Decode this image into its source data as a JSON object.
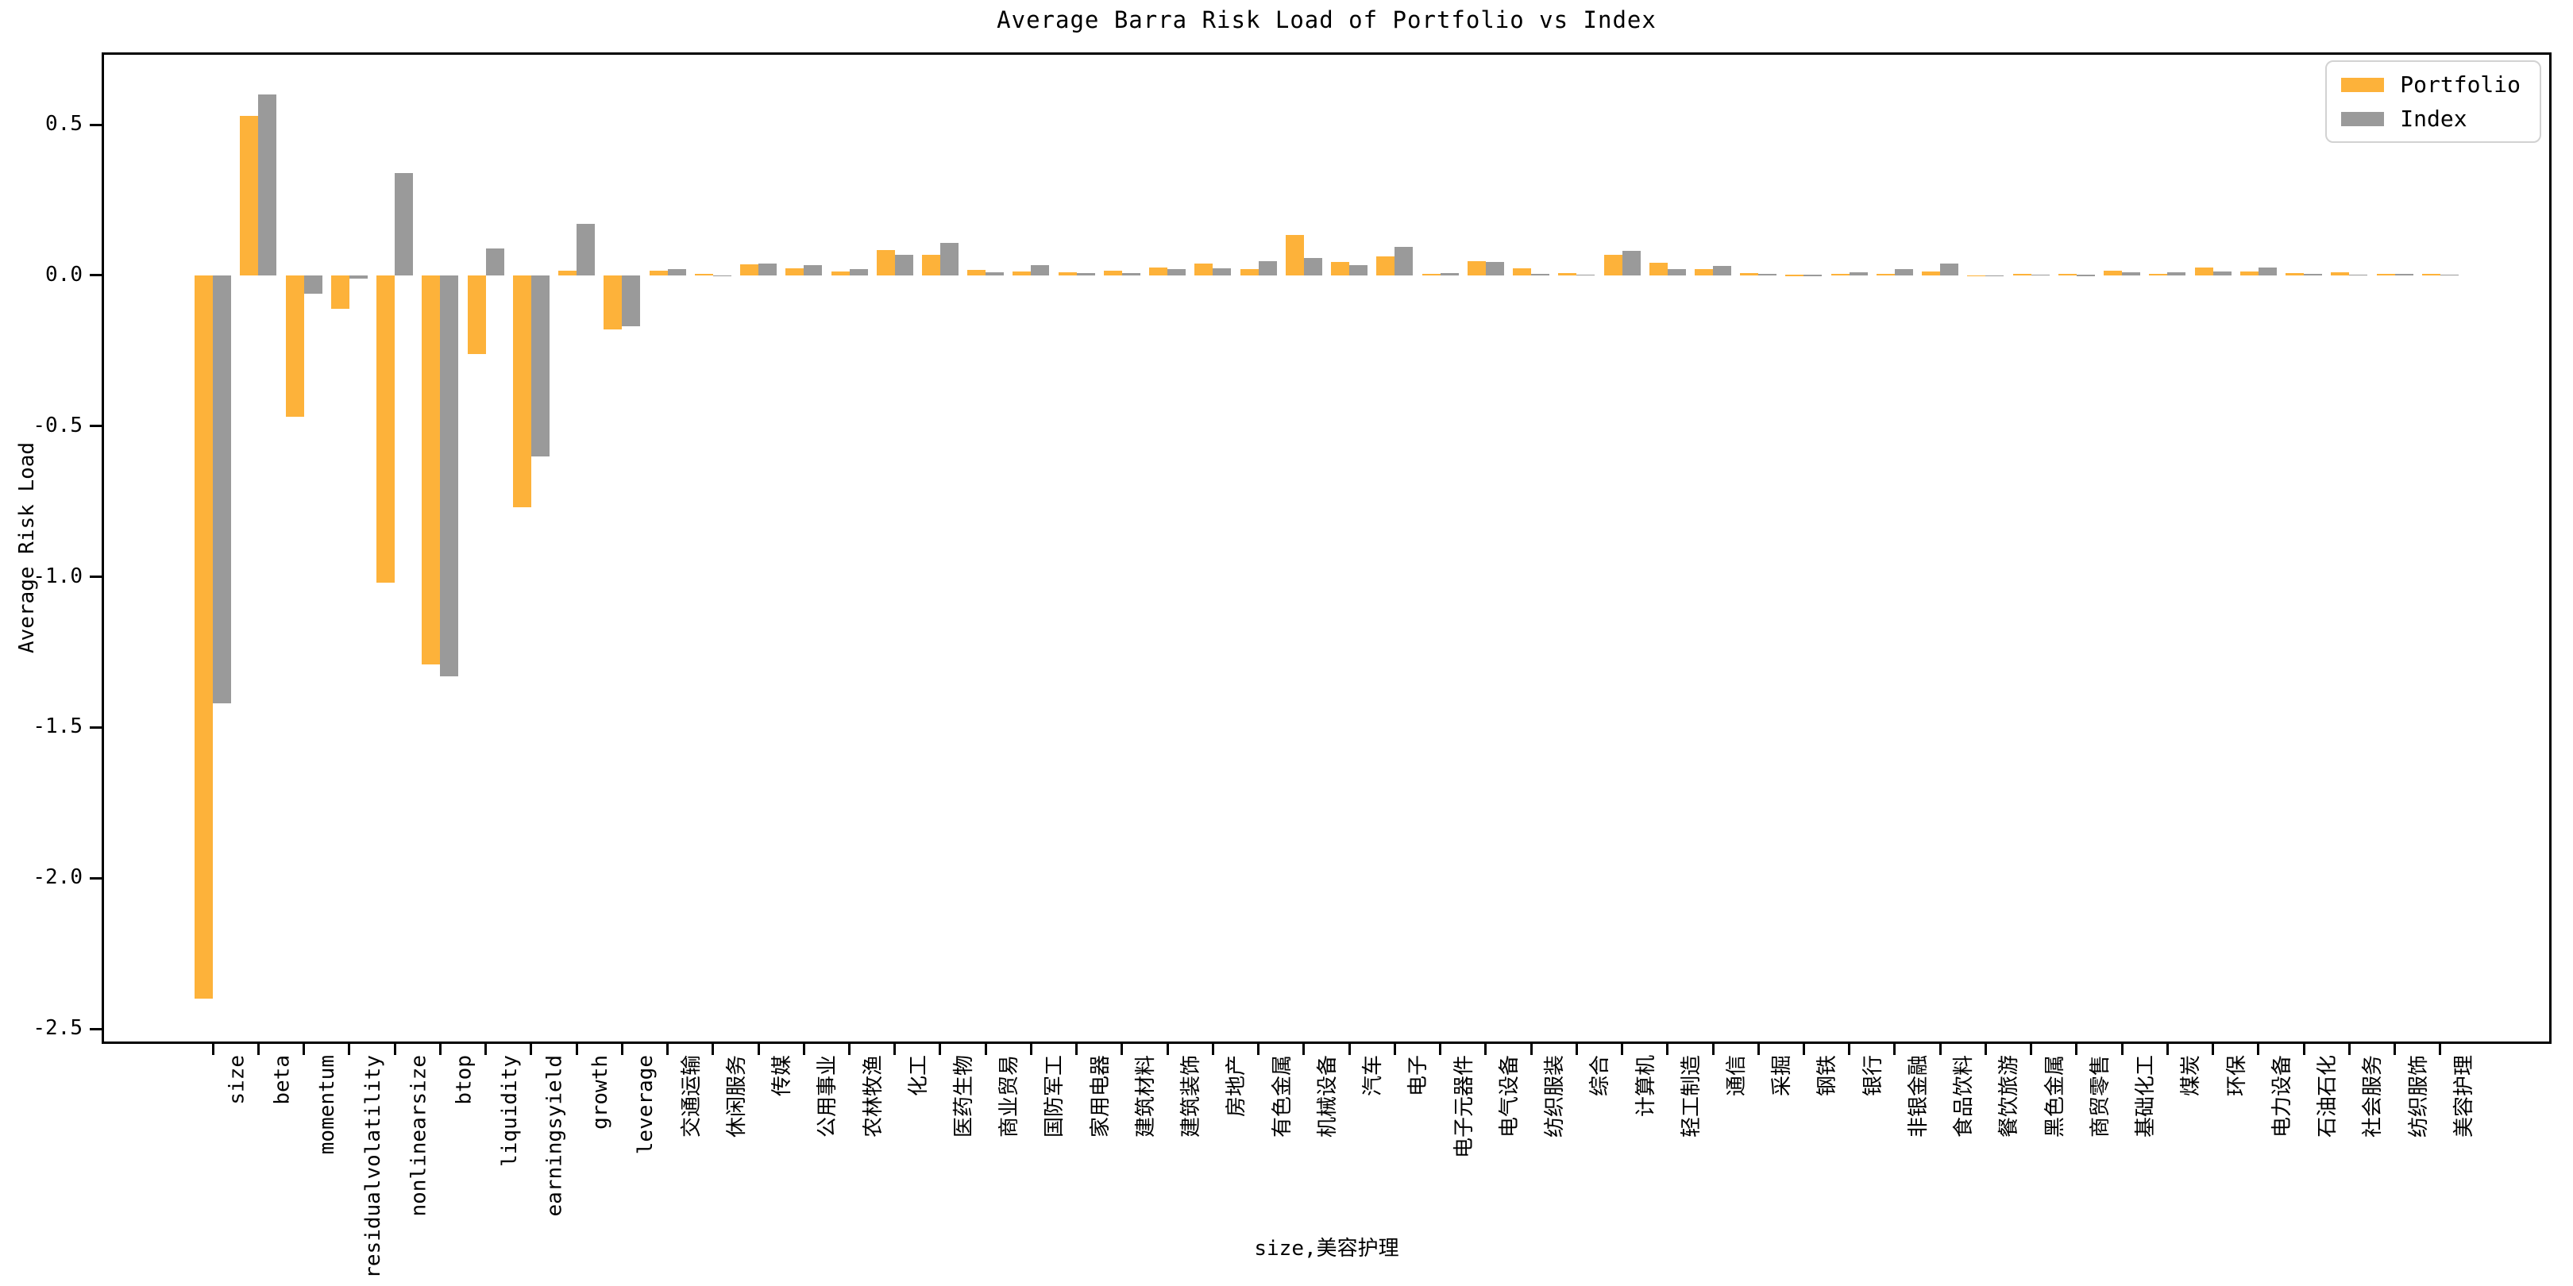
{
  "chart_data": {
    "type": "bar",
    "title": "Average Barra Risk Load of Portfolio vs Index",
    "xlabel": "size,美容护理",
    "ylabel": "Average Risk Load",
    "ylim": [
      -2.55,
      0.74
    ],
    "yticks": [
      0.5,
      0.0,
      -0.5,
      -1.0,
      -1.5,
      -2.0,
      -2.5
    ],
    "grid": false,
    "legend_position": "upper right",
    "background_color": "#FFFFFF",
    "axis_color": "#000000",
    "categories": [
      "size",
      "beta",
      "momentum",
      "residualvolatility",
      "nonlinearsize",
      "btop",
      "liquidity",
      "earningsyield",
      "growth",
      "leverage",
      "交通运输",
      "休闲服务",
      "传媒",
      "公用事业",
      "农林牧渔",
      "化工",
      "医药生物",
      "商业贸易",
      "国防军工",
      "家用电器",
      "建筑材料",
      "建筑装饰",
      "房地产",
      "有色金属",
      "机械设备",
      "汽车",
      "电子",
      "电子元器件",
      "电气设备",
      "纺织服装",
      "综合",
      "计算机",
      "轻工制造",
      "通信",
      "采掘",
      "钢铁",
      "银行",
      "非银金融",
      "食品饮料",
      "餐饮旅游",
      "黑色金属",
      "商贸零售",
      "基础化工",
      "煤炭",
      "环保",
      "电力设备",
      "石油石化",
      "社会服务",
      "纺织服饰",
      "美容护理"
    ],
    "series": [
      {
        "name": "Portfolio",
        "color": "#FDB23A",
        "values": [
          -2.4,
          0.53,
          -0.47,
          -0.11,
          -1.02,
          -1.29,
          -0.26,
          -0.77,
          0.015,
          -0.18,
          0.015,
          0.005,
          0.037,
          0.023,
          0.013,
          0.083,
          0.068,
          0.018,
          0.014,
          0.011,
          0.015,
          0.027,
          0.04,
          0.02,
          0.133,
          0.044,
          0.063,
          0.004,
          0.048,
          0.024,
          0.007,
          0.068,
          0.041,
          0.022,
          0.008,
          0.002,
          0.004,
          0.005,
          0.012,
          0.001,
          0.005,
          0.004,
          0.015,
          0.004,
          0.027,
          0.013,
          0.007,
          0.01,
          0.005,
          0.006
        ]
      },
      {
        "name": "Index",
        "color": "#9A9A9A",
        "values": [
          -1.42,
          0.6,
          -0.06,
          -0.01,
          0.34,
          -1.33,
          0.09,
          -0.6,
          0.17,
          -0.17,
          0.02,
          -0.003,
          0.039,
          0.033,
          0.02,
          0.069,
          0.108,
          0.01,
          0.035,
          0.007,
          0.009,
          0.021,
          0.023,
          0.047,
          0.058,
          0.034,
          0.094,
          0.007,
          0.044,
          0.006,
          0.003,
          0.082,
          0.021,
          0.031,
          0.005,
          0.002,
          0.01,
          0.02,
          0.04,
          0.001,
          0.003,
          0.002,
          0.01,
          0.01,
          0.012,
          0.026,
          0.005,
          0.003,
          0.004,
          0.003
        ]
      }
    ]
  }
}
